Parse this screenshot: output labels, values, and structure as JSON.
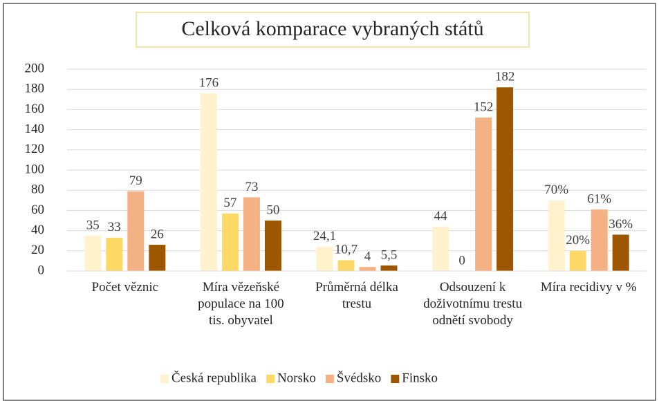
{
  "chart_data": {
    "type": "bar",
    "title": "Celková komparace vybraných států",
    "categories": [
      "Počet věznic",
      "Míra vězeňské populace na 100 tis. obyvatel",
      "Průměrná délka trestu",
      "Odsouzení k doživotnímu trestu odnětí svobody",
      "Míra recidivy v %"
    ],
    "series": [
      {
        "name": "Česká republika",
        "color": "#fff2cc",
        "values": [
          35,
          176,
          24.1,
          44,
          70
        ],
        "value_labels": [
          "35",
          "176",
          "24,1",
          "44",
          "70%"
        ]
      },
      {
        "name": "Norsko",
        "color": "#ffd966",
        "values": [
          33,
          57,
          10.7,
          0,
          20
        ],
        "value_labels": [
          "33",
          "57",
          "10,7",
          "0",
          "20%"
        ]
      },
      {
        "name": "Švédsko",
        "color": "#f4b183",
        "values": [
          79,
          73,
          4,
          152,
          61
        ],
        "value_labels": [
          "79",
          "73",
          "4",
          "152",
          "61%"
        ]
      },
      {
        "name": "Finsko",
        "color": "#9c5700",
        "values": [
          26,
          50,
          5.5,
          182,
          36
        ],
        "value_labels": [
          "26",
          "50",
          "5,5",
          "182",
          "36%"
        ]
      }
    ],
    "ylim": [
      0,
      200
    ],
    "yticks": [
      0,
      20,
      40,
      60,
      80,
      100,
      120,
      140,
      160,
      180,
      200
    ],
    "grid": true,
    "legend": "bottom"
  }
}
